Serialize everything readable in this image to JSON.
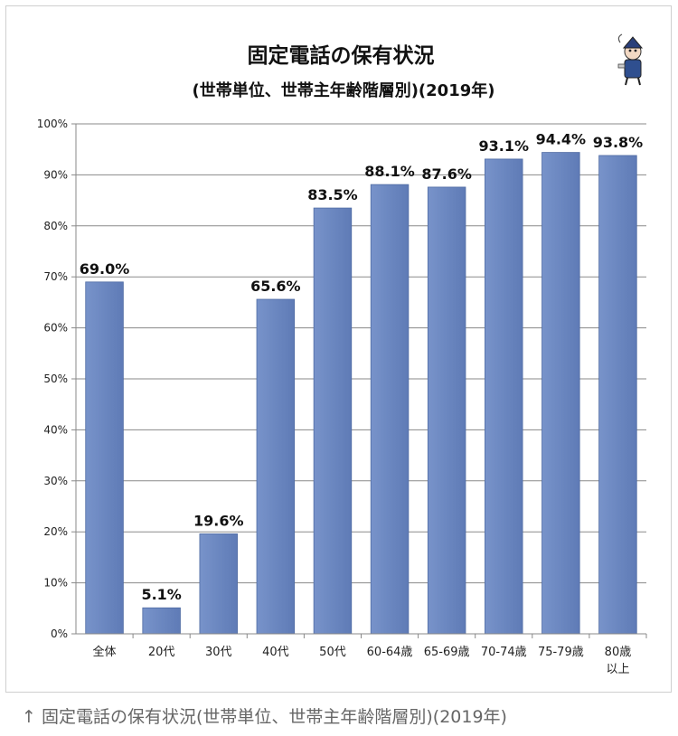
{
  "chart_data": {
    "type": "bar",
    "title": "固定電話の保有状況",
    "subtitle": "(世帯単位、世帯主年齢階層別)(2019年)",
    "categories": [
      "全体",
      "20代",
      "30代",
      "40代",
      "50代",
      "60-64歳",
      "65-69歳",
      "70-74歳",
      "75-79歳",
      "80歳\n以上"
    ],
    "values": [
      69.0,
      5.1,
      19.6,
      65.6,
      83.5,
      88.1,
      87.6,
      93.1,
      94.4,
      93.8
    ],
    "data_labels": [
      "69.0%",
      "5.1%",
      "19.6%",
      "65.6%",
      "83.5%",
      "88.1%",
      "87.6%",
      "93.1%",
      "94.4%",
      "93.8%"
    ],
    "yticks": [
      "0%",
      "10%",
      "20%",
      "30%",
      "40%",
      "50%",
      "60%",
      "70%",
      "80%",
      "90%",
      "100%"
    ],
    "ylim": [
      0,
      100
    ],
    "xlabel": "",
    "ylabel": "",
    "grid": true,
    "bar_color": "#6b87c0",
    "bar_edge_color": "#4f6ba3"
  },
  "caption": "↑ 固定電話の保有状況(世帯単位、世帯主年齢階層別)(2019年)",
  "mascot_icon": "mascot-character-icon"
}
